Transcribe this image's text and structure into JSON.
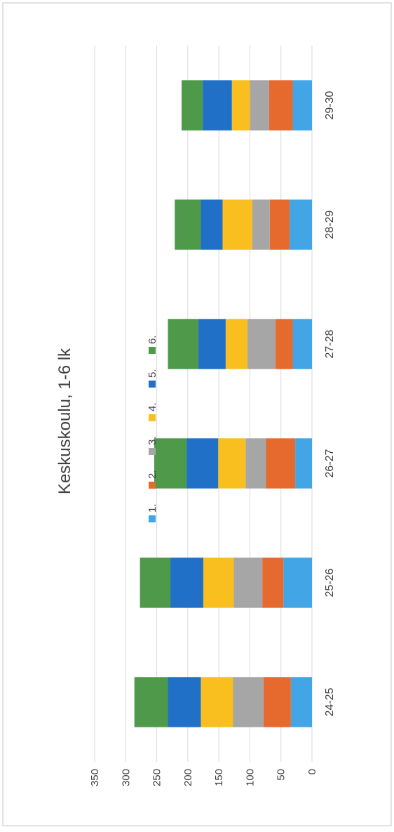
{
  "chart_data": {
    "type": "bar",
    "stacked": true,
    "orientation": "vertical",
    "rotated_image": true,
    "title": "Keskuskoulu, 1-6 lk",
    "categories": [
      "24-25",
      "25-26",
      "26-27",
      "27-28",
      "28-29",
      "29-30"
    ],
    "series": [
      {
        "name": "1.",
        "color": "#41A5E6",
        "values": [
          34,
          46,
          27,
          31,
          36,
          31
        ]
      },
      {
        "name": "2.",
        "color": "#E6692E",
        "values": [
          44,
          34,
          47,
          28,
          32,
          38
        ]
      },
      {
        "name": "3.",
        "color": "#A6A6A6",
        "values": [
          49,
          46,
          33,
          45,
          28,
          31
        ]
      },
      {
        "name": "4.",
        "color": "#F8BF1E",
        "values": [
          52,
          49,
          44,
          35,
          48,
          29
        ]
      },
      {
        "name": "5.",
        "color": "#2070C8",
        "values": [
          53,
          53,
          51,
          44,
          35,
          47
        ]
      },
      {
        "name": "6.",
        "color": "#4E9A4A",
        "values": [
          54,
          49,
          52,
          49,
          42,
          34
        ]
      }
    ],
    "yaxis": {
      "min": 0,
      "max": 350,
      "step": 50,
      "tick_labels": [
        "0",
        "50",
        "100",
        "150",
        "200",
        "250",
        "300",
        "350"
      ]
    },
    "grid": true,
    "legend": {
      "position": "bottom"
    }
  }
}
